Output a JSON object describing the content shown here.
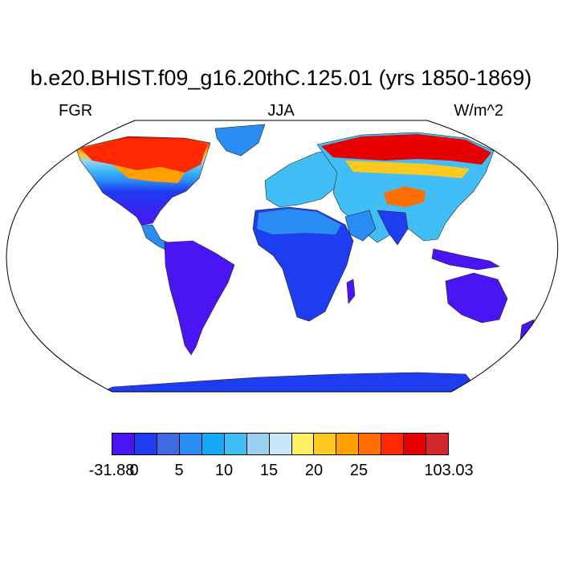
{
  "title": "b.e20.BHIST.f09_g16.20thC.125.01 (yrs 1850-1869)",
  "left_string": "FGR",
  "center_string": "JJA",
  "right_string": "W/m^2",
  "colorbar": {
    "colors": [
      "#4a14f5",
      "#1e3cf0",
      "#4169e1",
      "#2a8cf5",
      "#16aaf5",
      "#40bef5",
      "#9ad0f0",
      "#c8e8fa",
      "#fff064",
      "#ffc81e",
      "#ffa000",
      "#ff6e00",
      "#ff2800",
      "#e60000",
      "#d2282d"
    ],
    "labels": [
      {
        "text": "-31.88",
        "boundary": 0
      },
      {
        "text": "0",
        "boundary": 1
      },
      {
        "text": "5",
        "boundary": 3
      },
      {
        "text": "10",
        "boundary": 5
      },
      {
        "text": "15",
        "boundary": 7
      },
      {
        "text": "20",
        "boundary": 9
      },
      {
        "text": "25",
        "boundary": 11
      },
      {
        "text": "103.03",
        "boundary": 15
      }
    ]
  }
}
